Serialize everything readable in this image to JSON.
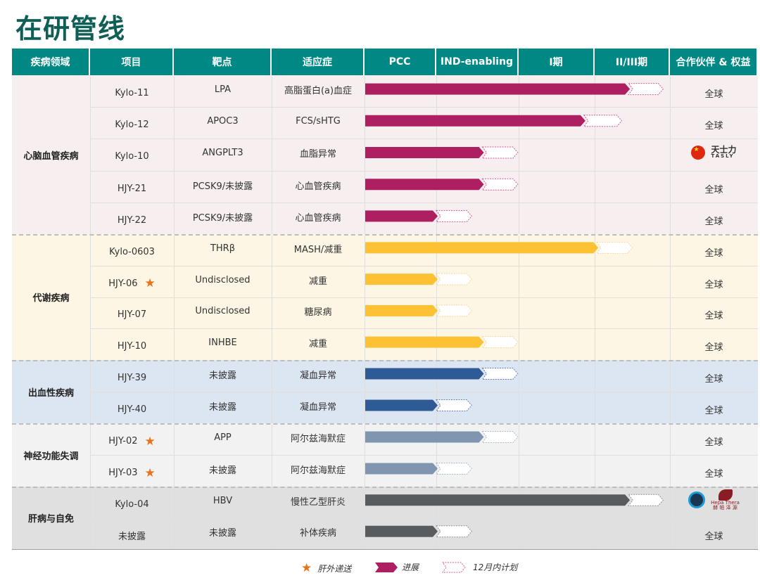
{
  "title": "在研管线",
  "headers": [
    "疾病领域",
    "项目",
    "靶点",
    "适应症",
    "PCC",
    "IND-enabling",
    "I期",
    "II/III期",
    "合作伙伴 & 权益"
  ],
  "stage_scale_note_units": "stages: PCC=0-1, IND-enabling=1-2, I期=2-3, II/III期=3-4",
  "groups": [
    {
      "label": "心脑血管疾病",
      "bg": "#f6eeef",
      "bar_color": "#ad1f60",
      "plan_color": "#d65a95",
      "rows": [
        {
          "project": "Kylo-11",
          "star": false,
          "target": "LPA",
          "indication": "高脂蛋白(a)血症",
          "progress": 3.45,
          "plan": 3.91,
          "partner": "全球"
        },
        {
          "project": "Kylo-12",
          "star": false,
          "target": "APOC3",
          "indication": "FCS/sHTG",
          "progress": 2.86,
          "plan": 3.36,
          "partner": "全球"
        },
        {
          "project": "Kylo-10",
          "star": false,
          "target": "ANGPLT3",
          "indication": "血脂异常",
          "progress": 1.56,
          "plan": 1.99,
          "partner": "",
          "partner_logo": {
            "icon": "china-flag-icon",
            "name": "天士力",
            "sub": "TASLY"
          }
        },
        {
          "project": "HJY-21",
          "star": false,
          "target": "PCSK9/未披露",
          "indication": "心血管疾病",
          "progress": 1.56,
          "plan": 1.99,
          "partner": "全球"
        },
        {
          "project": "HJY-22",
          "star": false,
          "target": "PCSK9/未披露",
          "indication": "心血管疾病",
          "progress": 1.0,
          "plan": 1.43,
          "partner": "全球"
        }
      ]
    },
    {
      "label": "代谢疾病",
      "bg": "#fdf6e4",
      "bar_color": "#fcc233",
      "plan_color": "#f0d79c",
      "rows": [
        {
          "project": "Kylo-0603",
          "star": false,
          "target": "THRβ",
          "indication": "MASH/减重",
          "progress": 3.03,
          "plan": 3.5,
          "partner": "全球"
        },
        {
          "project": "HJY-06",
          "star": true,
          "target": "Undisclosed",
          "indication": "减重",
          "progress": 1.0,
          "plan": 1.43,
          "partner": "全球"
        },
        {
          "project": "HJY-07",
          "star": false,
          "target": "Undisclosed",
          "indication": "糖尿病",
          "progress": 1.0,
          "plan": 1.43,
          "partner": "全球"
        },
        {
          "project": "HJY-10",
          "star": false,
          "target": "INHBE",
          "indication": "减重",
          "progress": 1.56,
          "plan": 1.99,
          "partner": "全球"
        }
      ]
    },
    {
      "label": "出血性疾病",
      "bg": "#dce6f2",
      "bar_color": "#2e5a95",
      "plan_color": "#5b7fc0",
      "rows": [
        {
          "project": "HJY-39",
          "star": false,
          "target": "未披露",
          "indication": "凝血异常",
          "progress": 1.56,
          "plan": 1.99,
          "partner": "全球"
        },
        {
          "project": "HJY-40",
          "star": false,
          "target": "未披露",
          "indication": "凝血异常",
          "progress": 1.0,
          "plan": 1.43,
          "partner": "全球"
        }
      ]
    },
    {
      "label": "神经功能失调",
      "bg": "#f2f2f2",
      "bar_color": "#8096b0",
      "plan_color": "#a9b9d0",
      "rows": [
        {
          "project": "HJY-02",
          "star": true,
          "target": "APP",
          "indication": "阿尔兹海默症",
          "progress": 1.56,
          "plan": 1.99,
          "partner": "全球"
        },
        {
          "project": "HJY-03",
          "star": true,
          "target": "未披露",
          "indication": "阿尔兹海默症",
          "progress": 1.0,
          "plan": 1.43,
          "partner": "全球"
        }
      ]
    },
    {
      "label": "肝病与自免",
      "bg": "#e0e0e0",
      "bar_color": "#595c5e",
      "plan_color": "#8f8f8f",
      "rows": [
        {
          "project": "Kylo-04",
          "star": false,
          "target": "HBV",
          "indication": "慢性乙型肝炎",
          "progress": 3.45,
          "plan": 3.91,
          "partner": "",
          "partner_logo": {
            "icon": "globe-icon",
            "name": "Hepa Thera",
            "sub": "赫 帕 泽 源"
          }
        },
        {
          "project": "未披露",
          "star": false,
          "target": "未披露",
          "indication": "补体疾病",
          "progress": 1.0,
          "plan": 1.43,
          "partner": "全球"
        }
      ]
    }
  ],
  "legend": {
    "star": "肝外递送",
    "progress": "进展",
    "plan": "12月内计划"
  },
  "colors": {
    "header": "#008984",
    "title": "#0f5f57",
    "star": "#e8731c"
  }
}
